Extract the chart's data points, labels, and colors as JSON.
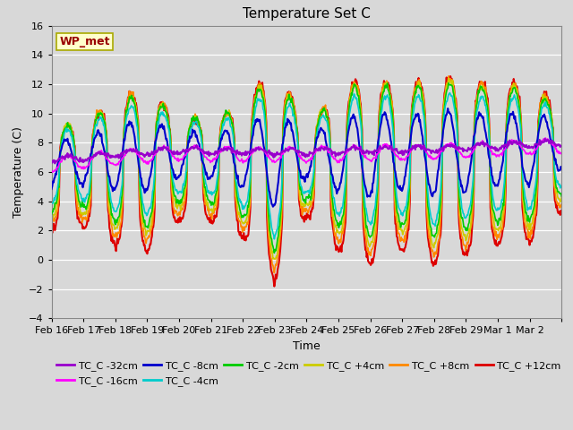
{
  "title": "Temperature Set C",
  "xlabel": "Time",
  "ylabel": "Temperature (C)",
  "ylim": [
    -4,
    16
  ],
  "yticks": [
    -4,
    -2,
    0,
    2,
    4,
    6,
    8,
    10,
    12,
    14,
    16
  ],
  "background_color": "#d8d8d8",
  "annotation_text": "WP_met",
  "annotation_box_color": "#ffffcc",
  "annotation_box_edge": "#aaaa00",
  "x_labels": [
    "Feb 16",
    "Feb 17",
    "Feb 18",
    "Feb 19",
    "Feb 20",
    "Feb 21",
    "Feb 22",
    "Feb 23",
    "Feb 24",
    "Feb 25",
    "Feb 26",
    "Feb 27",
    "Feb 28",
    "Feb 29",
    "Mar 1",
    "Mar 2"
  ],
  "series": [
    {
      "label": "TC_C -32cm",
      "color": "#9900cc"
    },
    {
      "label": "TC_C -16cm",
      "color": "#ff00ff"
    },
    {
      "label": "TC_C -8cm",
      "color": "#0000cc"
    },
    {
      "label": "TC_C -4cm",
      "color": "#00cccc"
    },
    {
      "label": "TC_C -2cm",
      "color": "#00cc00"
    },
    {
      "label": "TC_C +4cm",
      "color": "#cccc00"
    },
    {
      "label": "TC_C +8cm",
      "color": "#ff8800"
    },
    {
      "label": "TC_C +12cm",
      "color": "#dd0000"
    }
  ],
  "grid_color": "#cccccc",
  "title_fontsize": 11,
  "axis_fontsize": 9,
  "tick_fontsize": 8,
  "legend_fontsize": 8
}
